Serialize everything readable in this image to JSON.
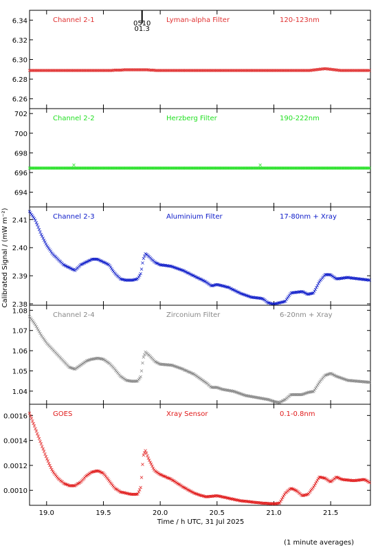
{
  "ylabel": "Calibrated Signal / (mW m⁻²)",
  "xlabel": "Time / h UTC, 31 Jul 2025",
  "footnote": "(1 minute averages)",
  "marker": {
    "line1": "0510",
    "line2": "01.3",
    "x": 19.84
  },
  "x_axis": {
    "range": [
      18.85,
      21.85
    ],
    "ticks": [
      19.0,
      19.5,
      20.0,
      20.5,
      21.0,
      21.5
    ],
    "tick_labels": [
      "19.0",
      "19.5",
      "20.0",
      "20.5",
      "21.0",
      "21.5"
    ]
  },
  "chart_data": [
    {
      "type": "scatter",
      "channel": "Channel 2-1",
      "filter": "Lyman-alpha Filter",
      "band": "120-123nm",
      "color": "#e03030",
      "ylim": [
        6.25,
        6.35
      ],
      "yticks": [
        6.26,
        6.28,
        6.3,
        6.32,
        6.34
      ],
      "ytick_labels": [
        "6.26",
        "6.28",
        "6.30",
        "6.32",
        "6.34"
      ],
      "points": [
        [
          18.85,
          6.289
        ],
        [
          19.5,
          6.289
        ],
        [
          19.75,
          6.29
        ],
        [
          19.85,
          6.29
        ],
        [
          20.0,
          6.289
        ],
        [
          21.3,
          6.289
        ],
        [
          21.45,
          6.291
        ],
        [
          21.6,
          6.289
        ],
        [
          21.85,
          6.289
        ]
      ]
    },
    {
      "type": "scatter",
      "channel": "Channel 2-2",
      "filter": "Herzberg Filter",
      "band": "190-222nm",
      "color": "#22e022",
      "ylim": [
        692.5,
        702.5
      ],
      "yticks": [
        694,
        696,
        698,
        700,
        702
      ],
      "ytick_labels": [
        "694",
        "696",
        "698",
        "700",
        "702"
      ],
      "points": [
        [
          18.85,
          696.5
        ],
        [
          21.85,
          696.5
        ]
      ],
      "outliers": [
        [
          19.24,
          696.8
        ],
        [
          20.88,
          696.8
        ]
      ]
    },
    {
      "type": "scatter",
      "channel": "Channel 2-3",
      "filter": "Aluminium Filter",
      "band": "17-80nm + Xray",
      "color": "#0a18c8",
      "ylim": [
        2.3795,
        2.4145
      ],
      "yticks": [
        2.38,
        2.39,
        2.4,
        2.41
      ],
      "ytick_labels": [
        "2.38",
        "2.39",
        "2.40",
        "2.41"
      ],
      "points": [
        [
          18.85,
          2.413
        ],
        [
          18.9,
          2.41
        ],
        [
          18.95,
          2.405
        ],
        [
          19.0,
          2.401
        ],
        [
          19.05,
          2.398
        ],
        [
          19.1,
          2.396
        ],
        [
          19.15,
          2.394
        ],
        [
          19.2,
          2.393
        ],
        [
          19.25,
          2.392
        ],
        [
          19.3,
          2.394
        ],
        [
          19.35,
          2.395
        ],
        [
          19.4,
          2.396
        ],
        [
          19.45,
          2.396
        ],
        [
          19.5,
          2.395
        ],
        [
          19.55,
          2.394
        ],
        [
          19.6,
          2.391
        ],
        [
          19.65,
          2.389
        ],
        [
          19.7,
          2.3885
        ],
        [
          19.75,
          2.3885
        ],
        [
          19.8,
          2.389
        ],
        [
          19.83,
          2.391
        ],
        [
          19.85,
          2.396
        ],
        [
          19.87,
          2.398
        ],
        [
          19.9,
          2.397
        ],
        [
          19.95,
          2.395
        ],
        [
          20.0,
          2.394
        ],
        [
          20.1,
          2.3935
        ],
        [
          20.2,
          2.392
        ],
        [
          20.3,
          2.39
        ],
        [
          20.4,
          2.388
        ],
        [
          20.45,
          2.3865
        ],
        [
          20.5,
          2.387
        ],
        [
          20.55,
          2.3865
        ],
        [
          20.6,
          2.386
        ],
        [
          20.7,
          2.384
        ],
        [
          20.8,
          2.3825
        ],
        [
          20.9,
          2.382
        ],
        [
          20.95,
          2.3805
        ],
        [
          21.0,
          2.38
        ],
        [
          21.05,
          2.3805
        ],
        [
          21.1,
          2.381
        ],
        [
          21.15,
          2.384
        ],
        [
          21.25,
          2.3845
        ],
        [
          21.3,
          2.3835
        ],
        [
          21.35,
          2.384
        ],
        [
          21.4,
          2.388
        ],
        [
          21.45,
          2.3905
        ],
        [
          21.5,
          2.3905
        ],
        [
          21.55,
          2.389
        ],
        [
          21.65,
          2.3895
        ],
        [
          21.75,
          2.389
        ],
        [
          21.85,
          2.3885
        ]
      ]
    },
    {
      "type": "scatter",
      "channel": "Channel 2-4",
      "filter": "Zirconium Filter",
      "band": "6-20nm + Xray",
      "color": "#888888",
      "ylim": [
        1.0335,
        1.0825
      ],
      "yticks": [
        1.04,
        1.05,
        1.06,
        1.07,
        1.08
      ],
      "ytick_labels": [
        "1.04",
        "1.05",
        "1.06",
        "1.07",
        "1.08"
      ],
      "points": [
        [
          18.85,
          1.077
        ],
        [
          18.9,
          1.073
        ],
        [
          18.95,
          1.068
        ],
        [
          19.0,
          1.064
        ],
        [
          19.05,
          1.061
        ],
        [
          19.1,
          1.058
        ],
        [
          19.15,
          1.055
        ],
        [
          19.2,
          1.052
        ],
        [
          19.25,
          1.051
        ],
        [
          19.3,
          1.053
        ],
        [
          19.35,
          1.055
        ],
        [
          19.4,
          1.056
        ],
        [
          19.45,
          1.0565
        ],
        [
          19.5,
          1.056
        ],
        [
          19.55,
          1.054
        ],
        [
          19.6,
          1.051
        ],
        [
          19.65,
          1.0475
        ],
        [
          19.7,
          1.0455
        ],
        [
          19.75,
          1.045
        ],
        [
          19.8,
          1.045
        ],
        [
          19.83,
          1.0475
        ],
        [
          19.85,
          1.0565
        ],
        [
          19.87,
          1.0595
        ],
        [
          19.9,
          1.058
        ],
        [
          19.95,
          1.055
        ],
        [
          20.0,
          1.0535
        ],
        [
          20.1,
          1.053
        ],
        [
          20.2,
          1.051
        ],
        [
          20.3,
          1.0485
        ],
        [
          20.4,
          1.0445
        ],
        [
          20.45,
          1.042
        ],
        [
          20.5,
          1.042
        ],
        [
          20.55,
          1.041
        ],
        [
          20.65,
          1.04
        ],
        [
          20.75,
          1.038
        ],
        [
          20.85,
          1.037
        ],
        [
          20.95,
          1.036
        ],
        [
          21.0,
          1.035
        ],
        [
          21.05,
          1.0345
        ],
        [
          21.1,
          1.036
        ],
        [
          21.15,
          1.0385
        ],
        [
          21.25,
          1.0385
        ],
        [
          21.3,
          1.0395
        ],
        [
          21.35,
          1.04
        ],
        [
          21.4,
          1.0445
        ],
        [
          21.45,
          1.048
        ],
        [
          21.5,
          1.049
        ],
        [
          21.55,
          1.0475
        ],
        [
          21.65,
          1.0455
        ],
        [
          21.75,
          1.045
        ],
        [
          21.85,
          1.0445
        ]
      ]
    },
    {
      "type": "scatter",
      "channel": "GOES",
      "filter": "Xray Sensor",
      "band": "0.1-0.8nm",
      "color": "#e01818",
      "ylim": [
        0.00088,
        0.00169
      ],
      "yticks": [
        0.001,
        0.0012,
        0.0014,
        0.0016
      ],
      "ytick_labels": [
        "0.0010",
        "0.0012",
        "0.0014",
        "0.0016"
      ],
      "points": [
        [
          18.85,
          0.00162
        ],
        [
          18.9,
          0.0015
        ],
        [
          18.95,
          0.00138
        ],
        [
          19.0,
          0.00126
        ],
        [
          19.05,
          0.00116
        ],
        [
          19.1,
          0.0011
        ],
        [
          19.15,
          0.00106
        ],
        [
          19.2,
          0.00104
        ],
        [
          19.25,
          0.00104
        ],
        [
          19.3,
          0.00107
        ],
        [
          19.35,
          0.00112
        ],
        [
          19.4,
          0.00115
        ],
        [
          19.45,
          0.00116
        ],
        [
          19.5,
          0.00114
        ],
        [
          19.55,
          0.00108
        ],
        [
          19.6,
          0.00102
        ],
        [
          19.65,
          0.00099
        ],
        [
          19.7,
          0.00098
        ],
        [
          19.75,
          0.00097
        ],
        [
          19.8,
          0.00097
        ],
        [
          19.83,
          0.00103
        ],
        [
          19.85,
          0.00128
        ],
        [
          19.87,
          0.00132
        ],
        [
          19.9,
          0.00125
        ],
        [
          19.95,
          0.00116
        ],
        [
          20.0,
          0.00113
        ],
        [
          20.1,
          0.00109
        ],
        [
          20.2,
          0.00103
        ],
        [
          20.3,
          0.00098
        ],
        [
          20.4,
          0.00095
        ],
        [
          20.5,
          0.00096
        ],
        [
          20.6,
          0.00094
        ],
        [
          20.7,
          0.00092
        ],
        [
          20.8,
          0.00091
        ],
        [
          20.9,
          0.0009
        ],
        [
          21.0,
          0.000895
        ],
        [
          21.05,
          0.0009
        ],
        [
          21.1,
          0.00098
        ],
        [
          21.15,
          0.00102
        ],
        [
          21.2,
          0.001
        ],
        [
          21.25,
          0.00096
        ],
        [
          21.3,
          0.00097
        ],
        [
          21.35,
          0.00103
        ],
        [
          21.4,
          0.00111
        ],
        [
          21.45,
          0.0011
        ],
        [
          21.5,
          0.00107
        ],
        [
          21.55,
          0.00111
        ],
        [
          21.6,
          0.00109
        ],
        [
          21.7,
          0.00108
        ],
        [
          21.8,
          0.00109
        ],
        [
          21.85,
          0.00106
        ]
      ]
    }
  ]
}
